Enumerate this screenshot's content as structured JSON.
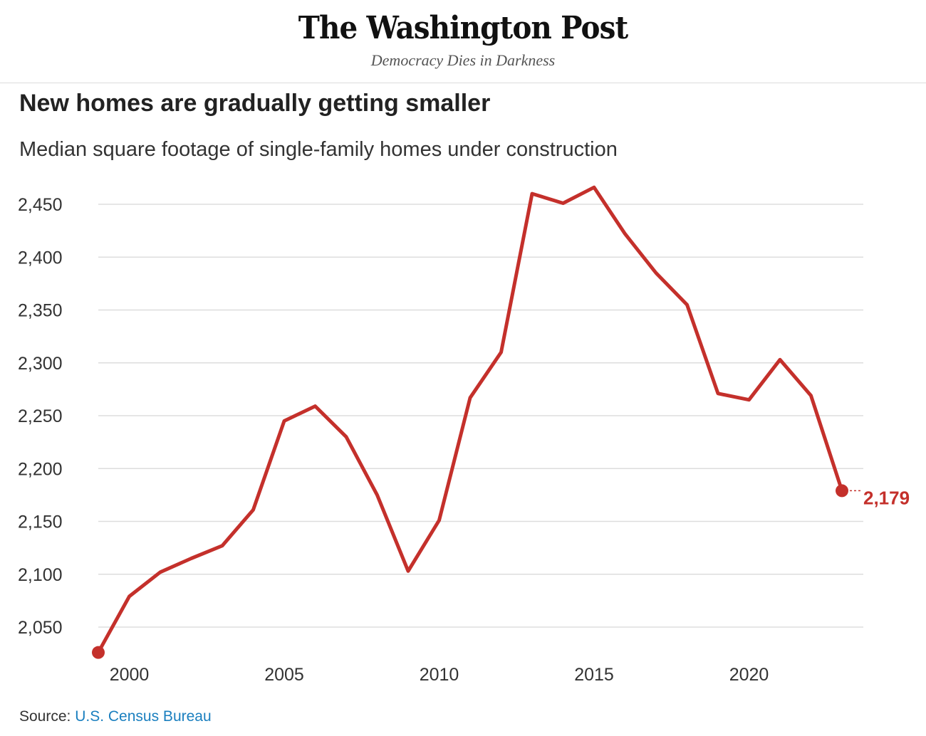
{
  "masthead": {
    "logo": "The Washington Post",
    "tagline": "Democracy Dies in Darkness"
  },
  "source": {
    "label": "Source:",
    "link_text": "U.S. Census Bureau"
  },
  "colors": {
    "line": "#c4302b",
    "grid": "#dddddd",
    "axis_text": "#333333",
    "link": "#1a7fbf"
  },
  "chart_data": {
    "type": "line",
    "title": "New homes are gradually getting smaller",
    "subtitle": "Median square footage of single-family homes under construction",
    "xlabel": "",
    "ylabel": "",
    "x": [
      1999,
      2000,
      2001,
      2002,
      2003,
      2004,
      2005,
      2006,
      2007,
      2008,
      2009,
      2010,
      2011,
      2012,
      2013,
      2014,
      2015,
      2016,
      2017,
      2018,
      2019,
      2020,
      2021,
      2022,
      2023
    ],
    "series": [
      {
        "name": "Median square footage",
        "values": [
          2026,
          2079,
          2102,
          2115,
          2127,
          2161,
          2245,
          2259,
          2230,
          2175,
          2103,
          2151,
          2267,
          2310,
          2460,
          2451,
          2466,
          2422,
          2385,
          2355,
          2271,
          2265,
          2303,
          2269,
          2179
        ]
      }
    ],
    "x_ticks": [
      2000,
      2005,
      2010,
      2015,
      2020
    ],
    "x_tick_labels": [
      "2000",
      "2005",
      "2010",
      "2015",
      "2020"
    ],
    "y_ticks": [
      2050,
      2100,
      2150,
      2200,
      2250,
      2300,
      2350,
      2400,
      2450
    ],
    "y_tick_labels": [
      "2,050",
      "2,100",
      "2,150",
      "2,200",
      "2,250",
      "2,300",
      "2,350",
      "2,400",
      "2,450"
    ],
    "xlim": [
      1999,
      2023
    ],
    "ylim": [
      2050,
      2450
    ],
    "grid": true,
    "end_label": "2,179"
  }
}
